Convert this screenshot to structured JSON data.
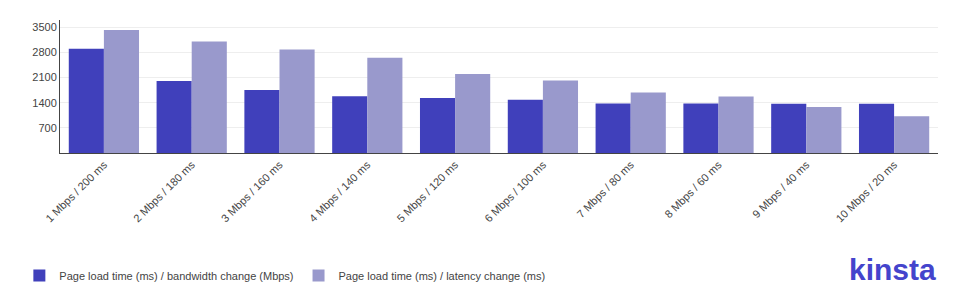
{
  "chart_data": {
    "type": "bar",
    "categories": [
      "1 Mbps / 200 ms",
      "2 Mbps / 180 ms",
      "3 Mbps / 160 ms",
      "4 Mbps / 140 ms",
      "5 Mbps / 120 ms",
      "6 Mbps / 100 ms",
      "7 Mbps / 80 ms",
      "8 Mbps / 60 ms",
      "9 Mbps / 40 ms",
      "10 Mbps / 20 ms"
    ],
    "series": [
      {
        "name": "Page load time (ms) / bandwidth change (Mbps)",
        "color": "#4040bb",
        "values": [
          2900,
          2000,
          1750,
          1580,
          1530,
          1480,
          1380,
          1380,
          1370,
          1370
        ]
      },
      {
        "name": "Page load time (ms) / latency change (ms)",
        "color": "#9999cc",
        "values": [
          3420,
          3100,
          2880,
          2650,
          2200,
          2020,
          1680,
          1570,
          1280,
          1020
        ]
      }
    ],
    "ylim": [
      0,
      3700
    ],
    "yticks": [
      700,
      1400,
      2100,
      2800,
      3500
    ],
    "grid": true,
    "legend": "lower left",
    "annotations": [
      {
        "text": "kinsta",
        "color": "#4444cc"
      }
    ]
  }
}
